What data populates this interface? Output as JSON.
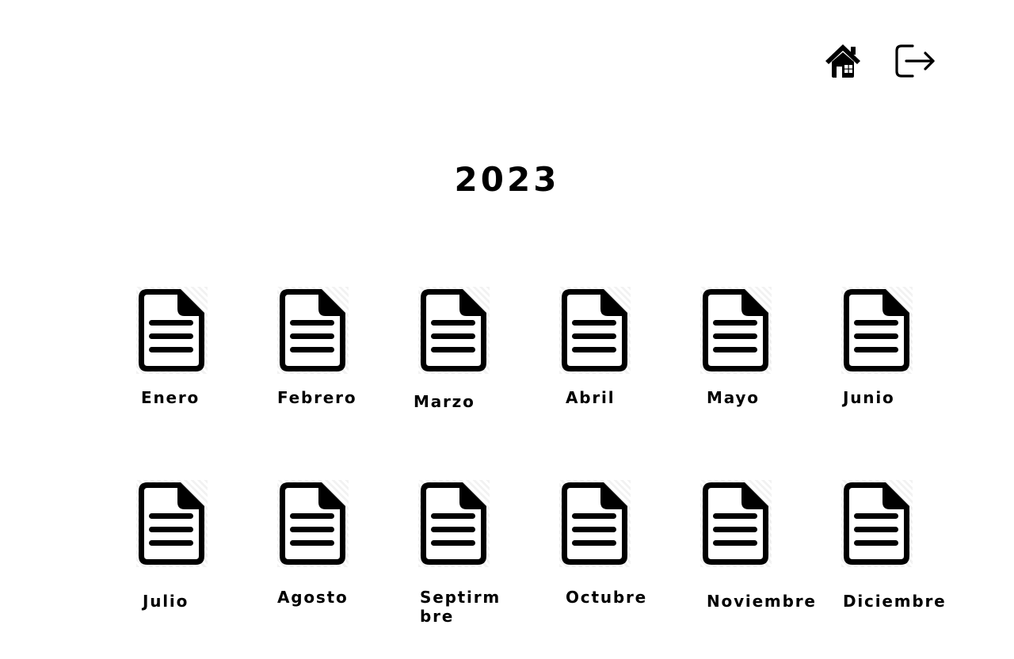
{
  "nav": {
    "home_icon": "home-icon",
    "logout_icon": "logout-icon"
  },
  "page": {
    "year": "2023"
  },
  "months": [
    {
      "label": "Enero"
    },
    {
      "label": "Febrero"
    },
    {
      "label": "Marzo"
    },
    {
      "label": "Abril"
    },
    {
      "label": "Mayo"
    },
    {
      "label": "Junio"
    },
    {
      "label": "Julio"
    },
    {
      "label": "Agosto"
    },
    {
      "label": "Septirm bre"
    },
    {
      "label": "Octubre"
    },
    {
      "label": "Noviembre"
    },
    {
      "label": "Diciembre"
    }
  ],
  "icons": {
    "month": "document-icon"
  }
}
